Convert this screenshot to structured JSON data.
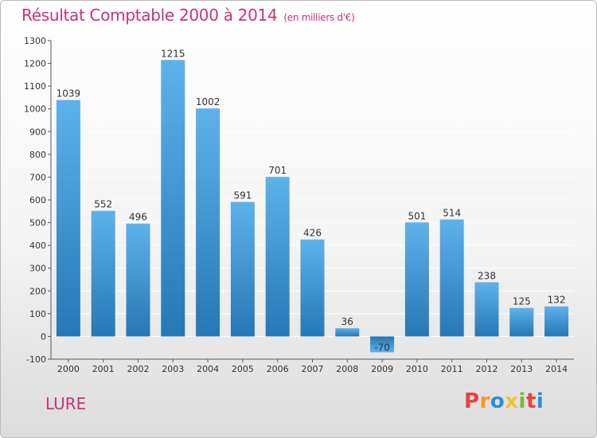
{
  "header": {
    "title": "Résultat Comptable 2000 à 2014",
    "subtitle": "(en milliers d'€)"
  },
  "footer": {
    "city": "LURE",
    "logo": "Proxiti",
    "logo_colors": [
      "#e8423f",
      "#f39c1c",
      "#2a8fd8",
      "#f2c12e",
      "#7ab833",
      "#e8423f",
      "#2a8fd8"
    ]
  },
  "colors": {
    "title": "#c8337b",
    "bar_top": "#5eb2ea",
    "bar_bottom": "#2677b5",
    "axis": "#555555",
    "grid": "#ffffff"
  },
  "chart_data": {
    "type": "bar",
    "title": "Résultat Comptable 2000 à 2014",
    "xlabel": "",
    "ylabel": "",
    "ylim": [
      -100,
      1300
    ],
    "yticks": [
      -100,
      0,
      100,
      200,
      300,
      400,
      500,
      600,
      700,
      800,
      900,
      1000,
      1100,
      1200,
      1300
    ],
    "grid": true,
    "categories": [
      "2000",
      "2001",
      "2002",
      "2003",
      "2004",
      "2005",
      "2006",
      "2007",
      "2008",
      "2009",
      "2010",
      "2011",
      "2012",
      "2013",
      "2014"
    ],
    "values": [
      1039,
      552,
      496,
      1215,
      1002,
      591,
      701,
      426,
      36,
      -70,
      501,
      514,
      238,
      125,
      132
    ],
    "value_labels": [
      "1039",
      "552",
      "496",
      "1215",
      "1002",
      "591",
      "701",
      "426",
      "36",
      "-70",
      "501",
      "514",
      "238",
      "125",
      "132"
    ]
  }
}
